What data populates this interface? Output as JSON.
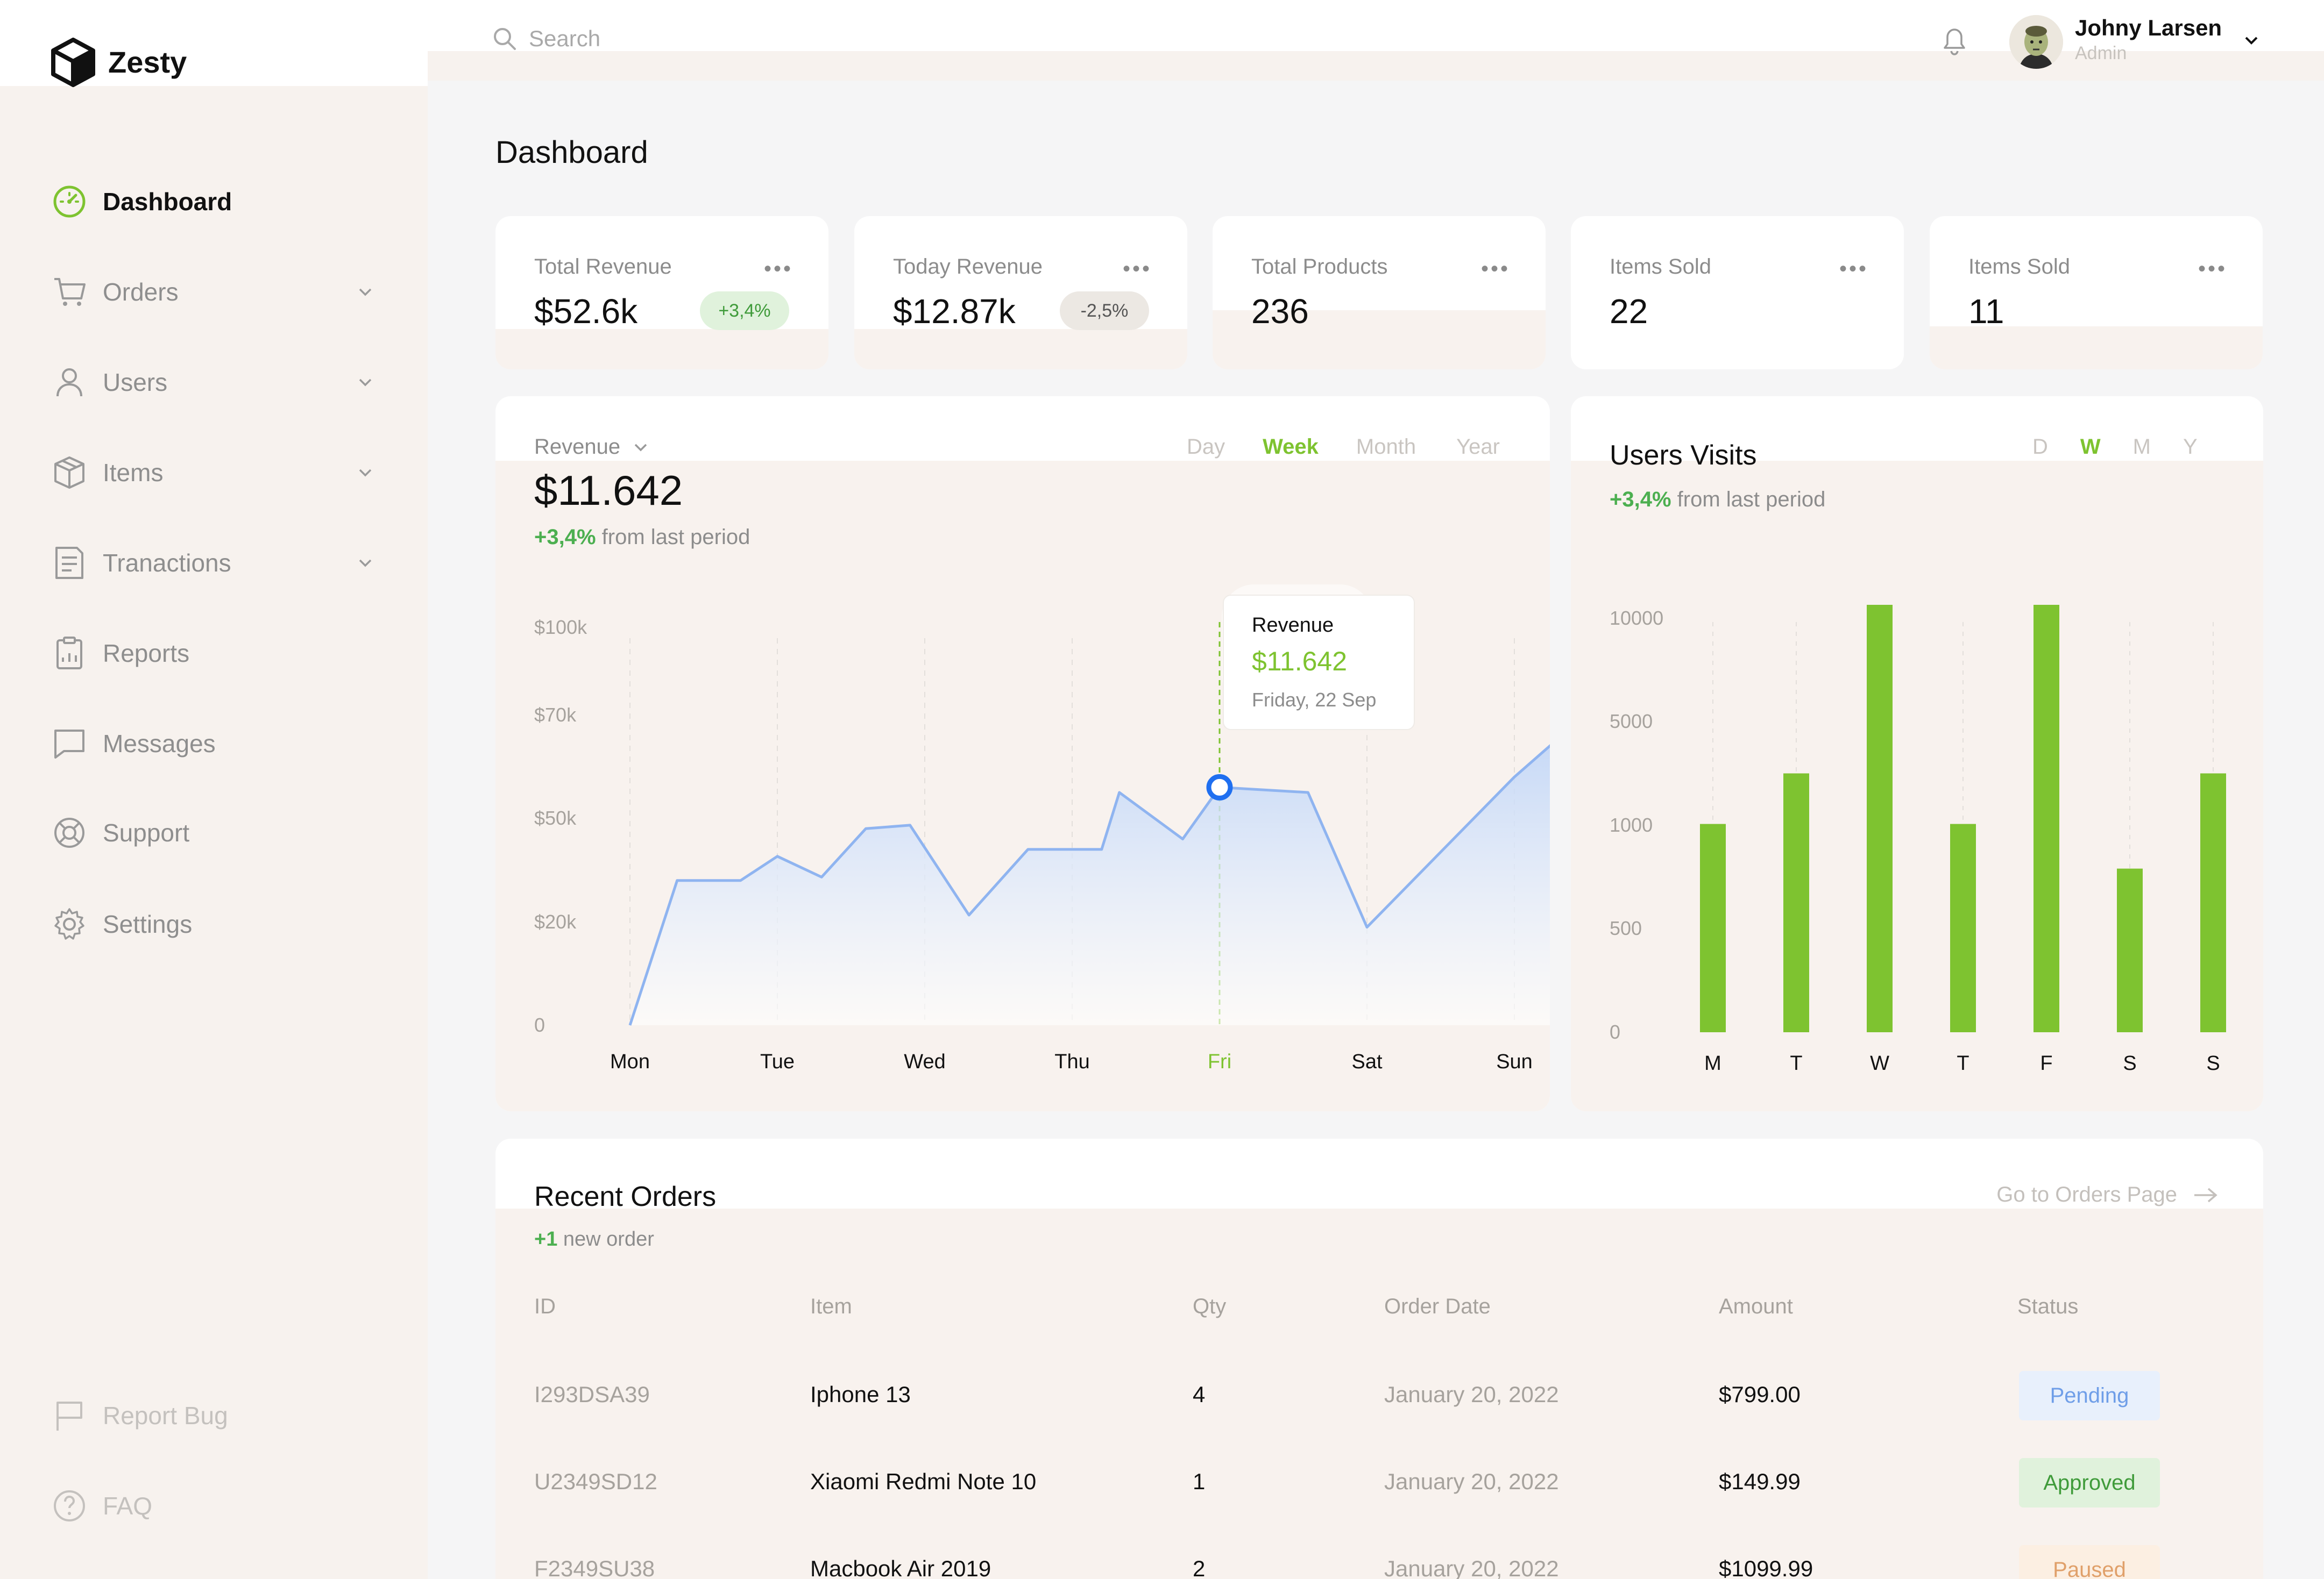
{
  "app": {
    "name": "Zesty"
  },
  "sidebar": {
    "items": [
      {
        "label": "Dashboard",
        "icon": "dashboard-gauge-icon",
        "active": true
      },
      {
        "label": "Orders",
        "icon": "cart-icon"
      },
      {
        "label": "Users",
        "icon": "user-icon"
      },
      {
        "label": "Items",
        "icon": "box-icon"
      },
      {
        "label": "Tranactions",
        "icon": "document-icon"
      },
      {
        "label": "Reports",
        "icon": "clipboard-icon"
      },
      {
        "label": "Messages",
        "icon": "chat-icon"
      },
      {
        "label": "Support",
        "icon": "lifebuoy-icon"
      },
      {
        "label": "Settings",
        "icon": "gear-icon"
      }
    ],
    "bottom": [
      {
        "label": "Report Bug",
        "icon": "flag-icon"
      },
      {
        "label": "FAQ",
        "icon": "question-icon"
      }
    ]
  },
  "header": {
    "search_placeholder": "Search",
    "user": {
      "name": "Johny Larsen",
      "role": "Admin"
    }
  },
  "page": {
    "title": "Dashboard"
  },
  "stats": [
    {
      "label": "Total Revenue",
      "value": "$52.6k",
      "badge": "+3,4%",
      "badge_type": "up"
    },
    {
      "label": "Today Revenue",
      "value": "$12.87k",
      "badge": "-2,5%",
      "badge_type": "down"
    },
    {
      "label": "Total Products",
      "value": "236"
    },
    {
      "label": "Items Sold",
      "value": "22"
    },
    {
      "label": "Items Sold",
      "value": "11"
    }
  ],
  "revenue": {
    "selector": "Revenue",
    "periods": [
      "Day",
      "Week",
      "Month",
      "Year"
    ],
    "active_period": "Week",
    "value": "$11.642",
    "delta": "+3,4%",
    "delta_text": "from last period",
    "tooltip": {
      "title": "Revenue",
      "value": "$11.642",
      "date": "Friday, 22 Sep"
    }
  },
  "visits": {
    "title": "Users Visits",
    "periods": [
      "D",
      "W",
      "M",
      "Y"
    ],
    "active_period": "W",
    "delta": "+3,4%",
    "delta_text": "from last period"
  },
  "chart_data": [
    {
      "type": "area",
      "title": "Revenue",
      "categories": [
        "Mon",
        "Tue",
        "Wed",
        "Thu",
        "Fri",
        "Sat",
        "Sun"
      ],
      "highlight": "Fri",
      "y_ticks": [
        "0",
        "$20k",
        "$50k",
        "$70k",
        "$100k"
      ],
      "y_tick_values": [
        0,
        20000,
        50000,
        70000,
        100000
      ],
      "ylim": [
        0,
        100000
      ],
      "x": [
        0,
        0.32,
        0.75,
        1.0,
        1.3,
        1.6,
        1.9,
        2.3,
        2.7,
        3.2,
        3.32,
        3.75,
        4.0,
        4.6,
        5.0,
        6.0,
        6.4
      ],
      "values": [
        0,
        32000,
        32000,
        39000,
        33000,
        47000,
        48000,
        22000,
        41000,
        41000,
        55000,
        44000,
        56000,
        55000,
        19000,
        58000,
        68000
      ],
      "grid": true,
      "color": "#8fb4f0"
    },
    {
      "type": "bar",
      "title": "Users Visits",
      "categories": [
        "M",
        "T",
        "W",
        "T",
        "F",
        "S",
        "S"
      ],
      "y_ticks": [
        "0",
        "500",
        "1000",
        "5000",
        "10000"
      ],
      "values": [
        1050,
        3000,
        11200,
        1050,
        11200,
        790,
        3000
      ],
      "color": "#7ec330",
      "grid": true
    }
  ],
  "orders": {
    "title": "Recent Orders",
    "new_count": "+1",
    "new_text": "new order",
    "link": "Go to Orders Page",
    "columns": [
      "ID",
      "Item",
      "Qty",
      "Order Date",
      "Amount",
      "Status"
    ],
    "rows": [
      {
        "id": "I293DSA39",
        "item": "Iphone 13",
        "qty": "4",
        "date": "January 20, 2022",
        "amount": "$799.00",
        "status": "Pending"
      },
      {
        "id": "U2349SD12",
        "item": "Xiaomi Redmi Note 10",
        "qty": "1",
        "date": "January 20, 2022",
        "amount": "$149.99",
        "status": "Approved"
      },
      {
        "id": "F2349SU38",
        "item": "Macbook Air 2019",
        "qty": "2",
        "date": "January 20, 2022",
        "amount": "$1099.99",
        "status": "Paused"
      }
    ]
  },
  "colors": {
    "accent": "#7ec330",
    "pending_bg": "#e8f0fc",
    "pending_fg": "#6f9ee8",
    "approved_bg": "#e0f2dc",
    "approved_fg": "#3f9b3a",
    "paused_bg": "#fcefe2",
    "paused_fg": "#e0a06a"
  }
}
